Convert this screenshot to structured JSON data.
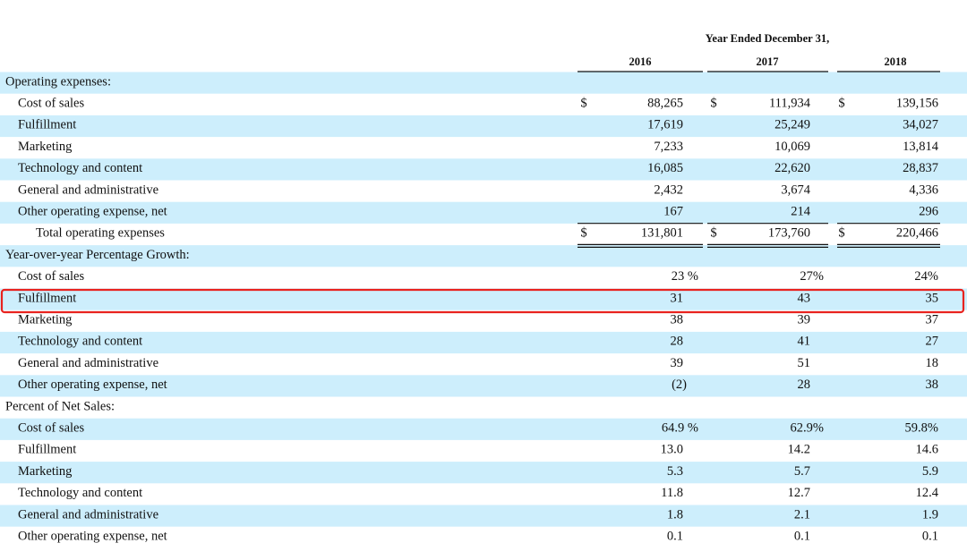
{
  "header": {
    "title": "Year Ended December 31,",
    "years": [
      "2016",
      "2017",
      "2018"
    ]
  },
  "sections": [
    {
      "heading": "Operating expenses:",
      "rows": [
        {
          "label": "Cost of sales",
          "currency": [
            "$",
            "$",
            "$"
          ],
          "values": [
            "88,265",
            "111,934",
            "139,156"
          ]
        },
        {
          "label": "Fulfillment",
          "values": [
            "17,619",
            "25,249",
            "34,027"
          ]
        },
        {
          "label": "Marketing",
          "values": [
            "7,233",
            "10,069",
            "13,814"
          ]
        },
        {
          "label": "Technology and content",
          "values": [
            "16,085",
            "22,620",
            "28,837"
          ]
        },
        {
          "label": "General and administrative",
          "values": [
            "2,432",
            "3,674",
            "4,336"
          ]
        },
        {
          "label": "Other operating expense, net",
          "values": [
            "167",
            "214",
            "296"
          ]
        }
      ],
      "total": {
        "label": "Total operating expenses",
        "currency": [
          "$",
          "$",
          "$"
        ],
        "values": [
          "131,801",
          "173,760",
          "220,466"
        ]
      }
    },
    {
      "heading": "Year-over-year Percentage Growth:",
      "rows": [
        {
          "label": "Cost of sales",
          "values": [
            "23 %",
            "27%",
            "24%"
          ]
        },
        {
          "label": "Fulfillment",
          "values": [
            "31",
            "43",
            "35"
          ]
        },
        {
          "label": "Marketing",
          "values": [
            "38",
            "39",
            "37"
          ]
        },
        {
          "label": "Technology and content",
          "values": [
            "28",
            "41",
            "27"
          ]
        },
        {
          "label": "General and administrative",
          "values": [
            "39",
            "51",
            "18"
          ]
        },
        {
          "label": "Other operating expense, net",
          "values": [
            "(2)",
            "28",
            "38"
          ]
        }
      ]
    },
    {
      "heading": "Percent of Net Sales:",
      "rows": [
        {
          "label": "Cost of sales",
          "values": [
            "64.9 %",
            "62.9%",
            "59.8%"
          ]
        },
        {
          "label": "Fulfillment",
          "values": [
            "13.0",
            "14.2",
            "14.6"
          ]
        },
        {
          "label": "Marketing",
          "values": [
            "5.3",
            "5.7",
            "5.9"
          ]
        },
        {
          "label": "Technology and content",
          "values": [
            "11.8",
            "12.7",
            "12.4"
          ]
        },
        {
          "label": "General and administrative",
          "values": [
            "1.8",
            "2.1",
            "1.9"
          ]
        },
        {
          "label": "Other operating expense, net",
          "values": [
            "0.1",
            "0.1",
            "0.1"
          ]
        }
      ]
    }
  ]
}
